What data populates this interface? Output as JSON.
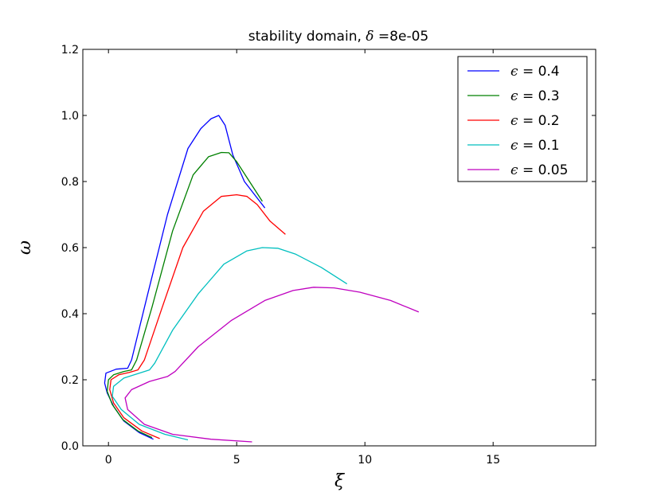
{
  "chart_data": {
    "type": "line",
    "title_prefix": "stability domain, ",
    "title_symbol": "δ",
    "title_suffix": " =8e-05",
    "xlabel": "ξ",
    "ylabel": "ω",
    "xlim": [
      -1,
      19
    ],
    "ylim": [
      0,
      1.2
    ],
    "xticks": [
      0,
      5,
      10,
      15
    ],
    "yticks": [
      0.0,
      0.2,
      0.4,
      0.6,
      0.8,
      1.0,
      1.2
    ],
    "ytick_labels": [
      "0.0",
      "0.2",
      "0.4",
      "0.6",
      "0.8",
      "1.0",
      "1.2"
    ],
    "grid": false,
    "legend_position": "top-right",
    "legend_symbol": "ϵ",
    "series": [
      {
        "name": "= 0.4",
        "color": "#0000ff",
        "x": [
          1.75,
          1.2,
          0.6,
          0.2,
          -0.05,
          -0.15,
          -0.1,
          0.3,
          0.75,
          0.9,
          1.5,
          2.3,
          3.1,
          3.6,
          4.0,
          4.3,
          4.55,
          4.85,
          5.3,
          6.1
        ],
        "y": [
          0.02,
          0.04,
          0.075,
          0.12,
          0.16,
          0.19,
          0.22,
          0.232,
          0.235,
          0.26,
          0.45,
          0.7,
          0.9,
          0.96,
          0.99,
          1.0,
          0.97,
          0.88,
          0.8,
          0.72
        ]
      },
      {
        "name": "= 0.3",
        "color": "#008000",
        "x": [
          1.7,
          1.15,
          0.55,
          0.15,
          -0.05,
          0.0,
          0.2,
          0.6,
          0.9,
          1.1,
          1.7,
          2.5,
          3.3,
          3.9,
          4.4,
          4.7,
          5.0,
          5.5,
          6.0
        ],
        "y": [
          0.025,
          0.045,
          0.08,
          0.125,
          0.165,
          0.2,
          0.215,
          0.225,
          0.23,
          0.26,
          0.42,
          0.65,
          0.82,
          0.875,
          0.888,
          0.887,
          0.86,
          0.8,
          0.74
        ]
      },
      {
        "name": "= 0.2",
        "color": "#ff0000",
        "x": [
          2.0,
          1.3,
          0.6,
          0.2,
          0.05,
          0.1,
          0.4,
          0.8,
          1.15,
          1.4,
          2.1,
          2.9,
          3.7,
          4.4,
          5.0,
          5.4,
          5.8,
          6.3,
          6.9
        ],
        "y": [
          0.022,
          0.045,
          0.085,
          0.13,
          0.17,
          0.2,
          0.215,
          0.222,
          0.23,
          0.26,
          0.42,
          0.6,
          0.71,
          0.755,
          0.76,
          0.755,
          0.73,
          0.68,
          0.64
        ]
      },
      {
        "name": "= 0.1",
        "color": "#00bfbf",
        "x": [
          3.1,
          2.2,
          1.2,
          0.5,
          0.15,
          0.2,
          0.6,
          1.2,
          1.6,
          1.8,
          2.5,
          3.5,
          4.5,
          5.4,
          6.0,
          6.6,
          7.3,
          8.3,
          9.3
        ],
        "y": [
          0.018,
          0.035,
          0.065,
          0.11,
          0.15,
          0.18,
          0.205,
          0.22,
          0.23,
          0.25,
          0.35,
          0.46,
          0.55,
          0.59,
          0.6,
          0.598,
          0.58,
          0.54,
          0.49
        ]
      },
      {
        "name": "= 0.05",
        "color": "#bf00bf",
        "x": [
          5.6,
          4.0,
          2.5,
          1.4,
          0.75,
          0.65,
          0.9,
          1.6,
          2.3,
          2.6,
          3.5,
          4.8,
          6.1,
          7.2,
          8.0,
          8.8,
          9.8,
          11.0,
          12.1
        ],
        "y": [
          0.012,
          0.02,
          0.035,
          0.065,
          0.11,
          0.145,
          0.17,
          0.195,
          0.21,
          0.225,
          0.3,
          0.38,
          0.44,
          0.47,
          0.48,
          0.478,
          0.465,
          0.44,
          0.405
        ]
      }
    ]
  }
}
